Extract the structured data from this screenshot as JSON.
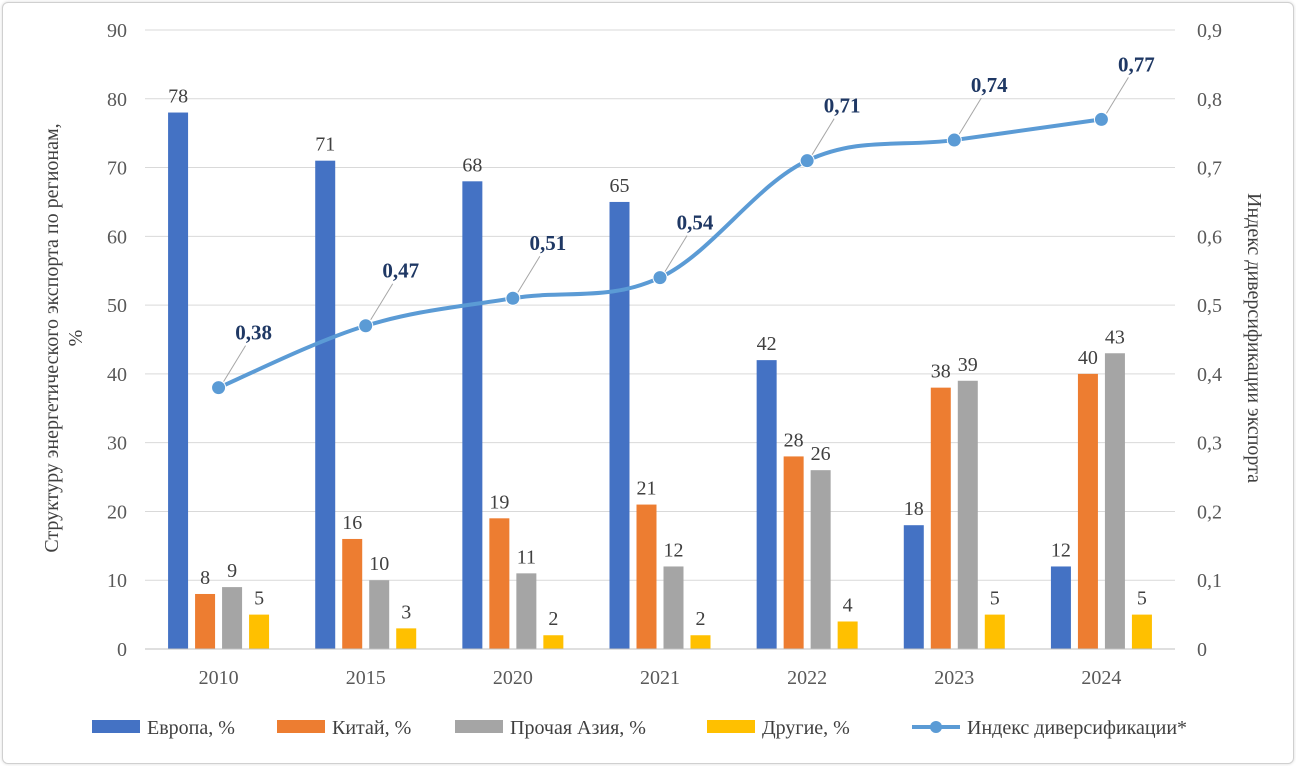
{
  "chart_data": {
    "type": "bar",
    "categories": [
      "2010",
      "2015",
      "2020",
      "2021",
      "2022",
      "2023",
      "2024"
    ],
    "series": [
      {
        "name": "Европа, %",
        "color": "#4472c4",
        "values": [
          78,
          71,
          68,
          65,
          42,
          18,
          12
        ]
      },
      {
        "name": "Китай, %",
        "color": "#ed7d31",
        "values": [
          8,
          16,
          19,
          21,
          28,
          38,
          40
        ]
      },
      {
        "name": "Прочая Азия, %",
        "color": "#a5a5a5",
        "values": [
          9,
          10,
          11,
          12,
          26,
          39,
          43
        ]
      },
      {
        "name": "Другие, %",
        "color": "#ffc000",
        "values": [
          5,
          3,
          2,
          2,
          4,
          5,
          5
        ]
      }
    ],
    "line_series": {
      "name": "Индекс диверсификации*",
      "color": "#5b9bd5",
      "axis": "secondary",
      "values": [
        0.38,
        0.47,
        0.51,
        0.54,
        0.71,
        0.74,
        0.77
      ],
      "labels": [
        "0,38",
        "0,47",
        "0,51",
        "0,54",
        "0,71",
        "0,74",
        "0,77"
      ]
    },
    "ylabel": "Структуру энергетического экспорта по регионам, %",
    "y2label": "Индекс диверсификации экспорта",
    "ylim": [
      0,
      90
    ],
    "y2lim": [
      0,
      0.9
    ],
    "yticks": [
      "0",
      "10",
      "20",
      "30",
      "40",
      "50",
      "60",
      "70",
      "80",
      "90"
    ],
    "y2ticks": [
      "0",
      "0,1",
      "0,2",
      "0,3",
      "0,4",
      "0,5",
      "0,6",
      "0,7",
      "0,8",
      "0,9"
    ],
    "grid": true,
    "legend": "bottom"
  }
}
